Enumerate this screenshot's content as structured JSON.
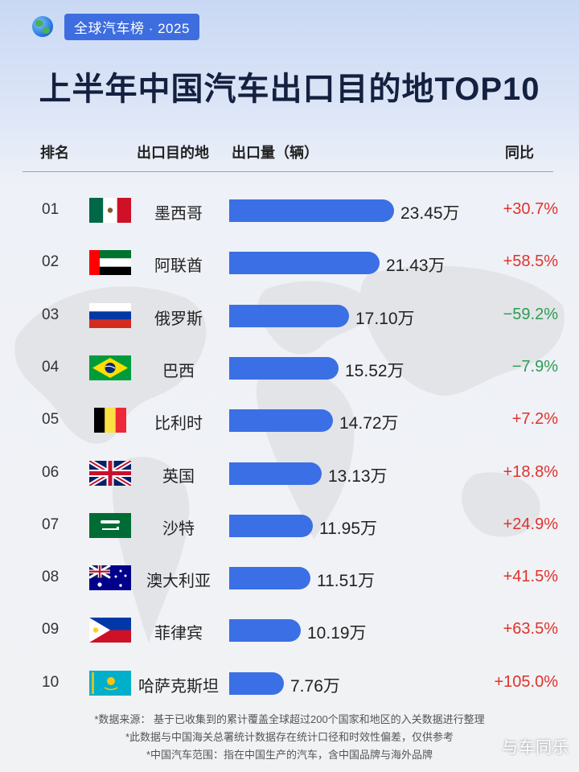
{
  "badge": "全球汽车榜 · 2025",
  "title": "上半年中国汽车出口目的地TOP10",
  "headers": {
    "rank": "排名",
    "country": "出口目的地",
    "volume": "出口量（辆）",
    "yoy": "同比"
  },
  "colors": {
    "bar": "#3b6fe5",
    "positive": "#e0322d",
    "negative": "#2e9b54",
    "badge": "#3e6de0"
  },
  "chart_data": {
    "type": "bar",
    "orientation": "horizontal",
    "title": "上半年中国汽车出口目的地TOP10",
    "xlabel": "出口量（辆）",
    "categories": [
      "墨西哥",
      "阿联酋",
      "俄罗斯",
      "巴西",
      "比利时",
      "英国",
      "沙特",
      "澳大利亚",
      "菲律宾",
      "哈萨克斯坦"
    ],
    "values": [
      23.45,
      21.43,
      17.1,
      15.52,
      14.72,
      13.13,
      11.95,
      11.51,
      10.19,
      7.76
    ],
    "value_unit": "万",
    "rows": [
      {
        "rank": "01",
        "flag": "mexico-flag",
        "country": "墨西哥",
        "value": 23.45,
        "value_label": "23.45万",
        "yoy": "+30.7%",
        "trend": "up"
      },
      {
        "rank": "02",
        "flag": "uae-flag",
        "country": "阿联酋",
        "value": 21.43,
        "value_label": "21.43万",
        "yoy": "+58.5%",
        "trend": "up"
      },
      {
        "rank": "03",
        "flag": "russia-flag",
        "country": "俄罗斯",
        "value": 17.1,
        "value_label": "17.10万",
        "yoy": "−59.2%",
        "trend": "down"
      },
      {
        "rank": "04",
        "flag": "brazil-flag",
        "country": "巴西",
        "value": 15.52,
        "value_label": "15.52万",
        "yoy": "−7.9%",
        "trend": "down"
      },
      {
        "rank": "05",
        "flag": "belgium-flag",
        "country": "比利时",
        "value": 14.72,
        "value_label": "14.72万",
        "yoy": "+7.2%",
        "trend": "up"
      },
      {
        "rank": "06",
        "flag": "uk-flag",
        "country": "英国",
        "value": 13.13,
        "value_label": "13.13万",
        "yoy": "+18.8%",
        "trend": "up"
      },
      {
        "rank": "07",
        "flag": "saudi-flag",
        "country": "沙特",
        "value": 11.95,
        "value_label": "11.95万",
        "yoy": "+24.9%",
        "trend": "up"
      },
      {
        "rank": "08",
        "flag": "australia-flag",
        "country": "澳大利亚",
        "value": 11.51,
        "value_label": "11.51万",
        "yoy": "+41.5%",
        "trend": "up"
      },
      {
        "rank": "09",
        "flag": "philippines-flag",
        "country": "菲律宾",
        "value": 10.19,
        "value_label": "10.19万",
        "yoy": "+63.5%",
        "trend": "up"
      },
      {
        "rank": "10",
        "flag": "kazakhstan-flag",
        "country": "哈萨克斯坦",
        "value": 7.76,
        "value_label": "7.76万",
        "yoy": "+105.0%",
        "trend": "up"
      }
    ]
  },
  "footnotes": [
    "*数据来源：        基于已收集到的累计覆盖全球超过200个国家和地区的入关数据进行整理",
    "*此数据与中国海关总署统计数据存在统计口径和时效性偏差，仅供参考",
    "*中国汽车范围：指在中国生产的汽车，含中国品牌与海外品牌"
  ],
  "watermark": "与车同乐"
}
